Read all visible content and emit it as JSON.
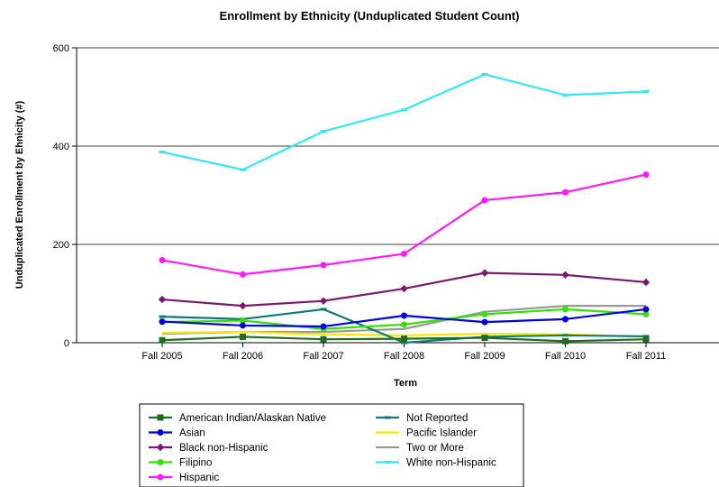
{
  "chart_data": {
    "type": "line",
    "title": "Enrollment by Ethnicity (Unduplicated Student Count)",
    "xlabel": "Term",
    "ylabel": "Unduplicated Enrollment by Ehnicity (#)",
    "categories": [
      "Fall 2005",
      "Fall 2006",
      "Fall 2007",
      "Fall 2008",
      "Fall 2009",
      "Fall 2010",
      "Fall 2011"
    ],
    "ylim": [
      0,
      600
    ],
    "yticks": [
      "0",
      "200",
      "400",
      "600"
    ],
    "grid": true,
    "legend_position": "bottom",
    "series": [
      {
        "name": "American Indian/Alaskan Native",
        "color": "#1f6e1f",
        "marker": "square",
        "values": [
          5,
          12,
          7,
          8,
          10,
          3,
          7
        ]
      },
      {
        "name": "Asian",
        "color": "#0000e0",
        "marker": "circle",
        "values": [
          43,
          35,
          33,
          55,
          42,
          48,
          68
        ]
      },
      {
        "name": "Black non-Hispanic",
        "color": "#7a1a6e",
        "marker": "diamond",
        "values": [
          88,
          75,
          85,
          110,
          142,
          138,
          123
        ]
      },
      {
        "name": "Filipino",
        "color": "#33e000",
        "marker": "circle",
        "values": [
          42,
          45,
          28,
          37,
          58,
          68,
          58
        ]
      },
      {
        "name": "Hispanic",
        "color": "#ff1aff",
        "marker": "circle",
        "values": [
          168,
          139,
          158,
          181,
          290,
          306,
          342
        ]
      },
      {
        "name": "Not Reported",
        "color": "#0d7a7a",
        "marker": "dash",
        "values": [
          53,
          48,
          68,
          0,
          12,
          15,
          13
        ]
      },
      {
        "name": "Pacific Islander",
        "color": "#f5e600",
        "marker": "none",
        "values": [
          20,
          22,
          17,
          15,
          18,
          17,
          12
        ]
      },
      {
        "name": "Two or More",
        "color": "#999999",
        "marker": "none",
        "values": [
          18,
          22,
          22,
          28,
          63,
          75,
          75
        ]
      },
      {
        "name": "White non-Hispanic",
        "color": "#33e8f0",
        "marker": "dash",
        "values": [
          388,
          352,
          430,
          474,
          546,
          504,
          511
        ]
      }
    ]
  }
}
